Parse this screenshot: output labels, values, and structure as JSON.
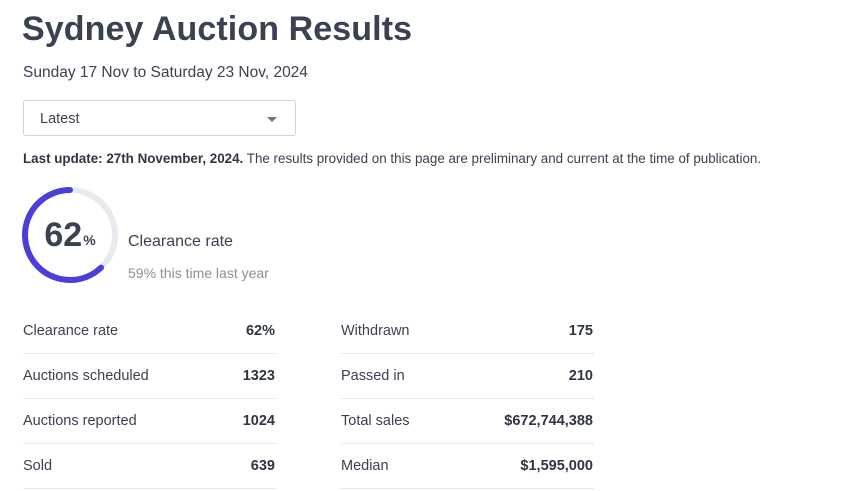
{
  "title": "Sydney Auction Results",
  "date_range": "Sunday 17 Nov to Saturday 23 Nov, 2024",
  "period_select": {
    "selected": "Latest"
  },
  "update": {
    "bold": "Last update: 27th November, 2024.",
    "text": " The results provided on this page are preliminary and current at the time of publication."
  },
  "clearance": {
    "value": "62",
    "unit": "%",
    "fraction": 0.62,
    "label": "Clearance rate",
    "comparison": "59% this time last year",
    "accent_color": "#4a3fd9",
    "track_color": "#e9eaef"
  },
  "stats_left": [
    {
      "label": "Clearance rate",
      "value": "62%"
    },
    {
      "label": "Auctions scheduled",
      "value": "1323"
    },
    {
      "label": "Auctions reported",
      "value": "1024"
    },
    {
      "label": "Sold",
      "value": "639"
    }
  ],
  "stats_right": [
    {
      "label": "Withdrawn",
      "value": "175"
    },
    {
      "label": "Passed in",
      "value": "210"
    },
    {
      "label": "Total sales",
      "value": "$672,744,388"
    },
    {
      "label": "Median",
      "value": "$1,595,000"
    }
  ],
  "icons": {
    "dropdown": "chevron-down-icon"
  }
}
